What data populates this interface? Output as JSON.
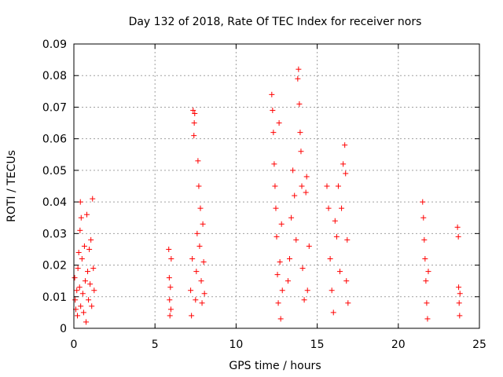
{
  "colors": {
    "marker": "#ff0000",
    "grid": "#a0a0a0",
    "axis": "#000000",
    "background": "#ffffff"
  },
  "chart_data": {
    "type": "scatter",
    "title": "Day 132 of 2018, Rate Of TEC Index for receiver nors",
    "xlabel": "GPS time / hours",
    "ylabel": "ROTI / TECUs",
    "xlim": [
      0,
      25
    ],
    "ylim": [
      0,
      0.09
    ],
    "xticks": [
      0,
      5,
      10,
      15,
      20,
      25
    ],
    "yticks": [
      0,
      0.01,
      0.02,
      0.03,
      0.04,
      0.05,
      0.06,
      0.07,
      0.08,
      0.09
    ],
    "grid": true,
    "marker": "+",
    "series": [
      {
        "name": "ROTI",
        "points": [
          [
            0.05,
            0.016
          ],
          [
            0.08,
            0.009
          ],
          [
            0.12,
            0.006
          ],
          [
            0.18,
            0.012
          ],
          [
            0.22,
            0.004
          ],
          [
            0.25,
            0.019
          ],
          [
            0.3,
            0.024
          ],
          [
            0.35,
            0.013
          ],
          [
            0.38,
            0.031
          ],
          [
            0.4,
            0.04
          ],
          [
            0.42,
            0.007
          ],
          [
            0.45,
            0.035
          ],
          [
            0.5,
            0.022
          ],
          [
            0.55,
            0.011
          ],
          [
            0.6,
            0.005
          ],
          [
            0.65,
            0.026
          ],
          [
            0.7,
            0.015
          ],
          [
            0.75,
            0.002
          ],
          [
            0.8,
            0.036
          ],
          [
            0.85,
            0.018
          ],
          [
            0.9,
            0.009
          ],
          [
            0.95,
            0.025
          ],
          [
            1.0,
            0.014
          ],
          [
            1.05,
            0.028
          ],
          [
            1.1,
            0.007
          ],
          [
            1.15,
            0.041
          ],
          [
            1.2,
            0.019
          ],
          [
            1.25,
            0.012
          ],
          [
            5.85,
            0.025
          ],
          [
            5.88,
            0.016
          ],
          [
            5.9,
            0.009
          ],
          [
            5.92,
            0.004
          ],
          [
            5.95,
            0.013
          ],
          [
            5.98,
            0.006
          ],
          [
            6.0,
            0.022
          ],
          [
            7.2,
            0.012
          ],
          [
            7.25,
            0.004
          ],
          [
            7.3,
            0.022
          ],
          [
            7.35,
            0.069
          ],
          [
            7.4,
            0.061
          ],
          [
            7.42,
            0.065
          ],
          [
            7.45,
            0.068
          ],
          [
            7.5,
            0.009
          ],
          [
            7.55,
            0.018
          ],
          [
            7.6,
            0.03
          ],
          [
            7.65,
            0.053
          ],
          [
            7.7,
            0.045
          ],
          [
            7.75,
            0.026
          ],
          [
            7.8,
            0.038
          ],
          [
            7.85,
            0.015
          ],
          [
            7.9,
            0.008
          ],
          [
            7.95,
            0.033
          ],
          [
            8.0,
            0.021
          ],
          [
            8.05,
            0.011
          ],
          [
            12.2,
            0.074
          ],
          [
            12.25,
            0.069
          ],
          [
            12.3,
            0.062
          ],
          [
            12.35,
            0.052
          ],
          [
            12.4,
            0.045
          ],
          [
            12.45,
            0.038
          ],
          [
            12.5,
            0.029
          ],
          [
            12.55,
            0.017
          ],
          [
            12.6,
            0.008
          ],
          [
            12.65,
            0.065
          ],
          [
            12.7,
            0.021
          ],
          [
            12.75,
            0.003
          ],
          [
            12.8,
            0.033
          ],
          [
            12.85,
            0.012
          ],
          [
            13.2,
            0.015
          ],
          [
            13.3,
            0.022
          ],
          [
            13.4,
            0.035
          ],
          [
            13.5,
            0.05
          ],
          [
            13.6,
            0.042
          ],
          [
            13.7,
            0.028
          ],
          [
            13.8,
            0.079
          ],
          [
            13.85,
            0.082
          ],
          [
            13.9,
            0.071
          ],
          [
            13.95,
            0.062
          ],
          [
            14.0,
            0.056
          ],
          [
            14.05,
            0.045
          ],
          [
            14.1,
            0.019
          ],
          [
            14.2,
            0.009
          ],
          [
            14.3,
            0.043
          ],
          [
            14.35,
            0.048
          ],
          [
            14.4,
            0.012
          ],
          [
            14.5,
            0.026
          ],
          [
            15.6,
            0.045
          ],
          [
            15.7,
            0.038
          ],
          [
            15.8,
            0.022
          ],
          [
            15.9,
            0.012
          ],
          [
            16.0,
            0.005
          ],
          [
            16.1,
            0.034
          ],
          [
            16.2,
            0.029
          ],
          [
            16.3,
            0.045
          ],
          [
            16.4,
            0.018
          ],
          [
            16.5,
            0.038
          ],
          [
            16.6,
            0.052
          ],
          [
            16.7,
            0.058
          ],
          [
            16.75,
            0.049
          ],
          [
            16.8,
            0.015
          ],
          [
            16.85,
            0.028
          ],
          [
            16.9,
            0.008
          ],
          [
            21.5,
            0.04
          ],
          [
            21.55,
            0.035
          ],
          [
            21.6,
            0.028
          ],
          [
            21.65,
            0.022
          ],
          [
            21.7,
            0.015
          ],
          [
            21.75,
            0.008
          ],
          [
            21.8,
            0.003
          ],
          [
            21.85,
            0.018
          ],
          [
            23.65,
            0.032
          ],
          [
            23.7,
            0.029
          ],
          [
            23.72,
            0.013
          ],
          [
            23.75,
            0.008
          ],
          [
            23.78,
            0.004
          ],
          [
            23.8,
            0.011
          ]
        ]
      }
    ]
  }
}
